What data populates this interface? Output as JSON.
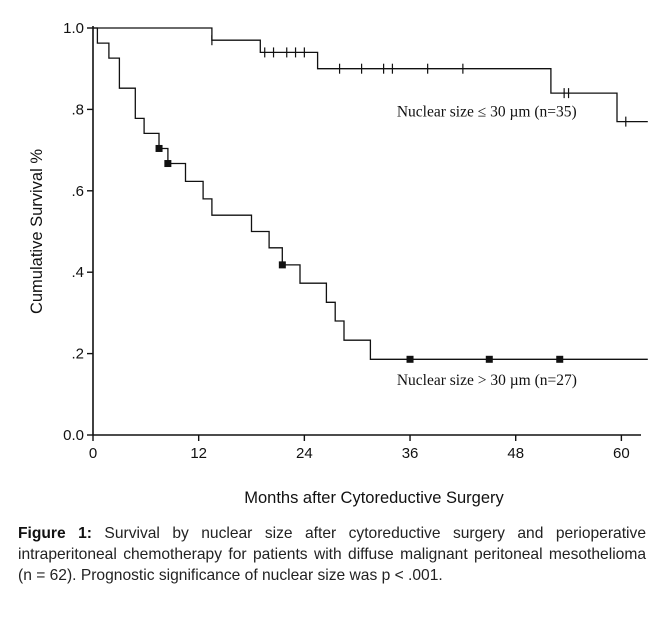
{
  "chart_data": {
    "type": "line",
    "title": "",
    "xlabel": "Months after Cytoreductive Surgery",
    "ylabel": "Cumulative Survival %",
    "xlim": [
      0,
      62
    ],
    "ylim": [
      0,
      1.0
    ],
    "x_ticks": [
      0,
      12,
      24,
      36,
      48,
      60
    ],
    "x_tick_labels": [
      "0",
      "12",
      "24",
      "36",
      "48",
      "60"
    ],
    "y_ticks": [
      0,
      0.2,
      0.4,
      0.6,
      0.8,
      1.0
    ],
    "y_tick_labels": [
      "0.0",
      ".2",
      ".4",
      ".6",
      ".8",
      "1.0"
    ],
    "grid": false,
    "series": [
      {
        "name": "Nuclear size ≤ 30 µm (n=35)",
        "step": [
          [
            0,
            1.0
          ],
          [
            13.5,
            1.0
          ],
          [
            13.5,
            0.97
          ],
          [
            19,
            0.97
          ],
          [
            19,
            0.94
          ],
          [
            25.5,
            0.94
          ],
          [
            25.5,
            0.9
          ],
          [
            52,
            0.9
          ],
          [
            52,
            0.84
          ],
          [
            56.5,
            0.84
          ],
          [
            56.5,
            0.84
          ],
          [
            59.5,
            0.84
          ],
          [
            59.5,
            0.77
          ],
          [
            63,
            0.77
          ]
        ],
        "censored": [
          13.5,
          19.5,
          20.5,
          22,
          23,
          24,
          28,
          30.5,
          33,
          34,
          38,
          42,
          53.5,
          54,
          60.5
        ],
        "censor_style": "tick"
      },
      {
        "name": "Nuclear size > 30 µm (n=27)",
        "step": [
          [
            0,
            1.0
          ],
          [
            0.5,
            1.0
          ],
          [
            0.5,
            0.963
          ],
          [
            1.8,
            0.963
          ],
          [
            1.8,
            0.926
          ],
          [
            3,
            0.926
          ],
          [
            3,
            0.852
          ],
          [
            4.8,
            0.852
          ],
          [
            4.8,
            0.778
          ],
          [
            5.8,
            0.778
          ],
          [
            5.8,
            0.741
          ],
          [
            7.5,
            0.741
          ],
          [
            7.5,
            0.704
          ],
          [
            8.5,
            0.704
          ],
          [
            8.5,
            0.667
          ],
          [
            10.5,
            0.667
          ],
          [
            10.5,
            0.623
          ],
          [
            12.5,
            0.623
          ],
          [
            12.5,
            0.58
          ],
          [
            13.5,
            0.58
          ],
          [
            13.5,
            0.54
          ],
          [
            18,
            0.54
          ],
          [
            18,
            0.5
          ],
          [
            20,
            0.5
          ],
          [
            20,
            0.46
          ],
          [
            21.5,
            0.46
          ],
          [
            21.5,
            0.418
          ],
          [
            23.5,
            0.418
          ],
          [
            23.5,
            0.373
          ],
          [
            26.5,
            0.373
          ],
          [
            26.5,
            0.326
          ],
          [
            27.5,
            0.326
          ],
          [
            27.5,
            0.28
          ],
          [
            28.5,
            0.28
          ],
          [
            28.5,
            0.233
          ],
          [
            31.5,
            0.233
          ],
          [
            31.5,
            0.186
          ],
          [
            63,
            0.186
          ]
        ],
        "censored": [
          [
            7.5,
            0.704
          ],
          [
            8.5,
            0.667
          ],
          [
            21.5,
            0.418
          ],
          [
            36,
            0.186
          ],
          [
            45,
            0.186
          ],
          [
            53,
            0.186
          ]
        ],
        "censor_style": "square"
      }
    ],
    "annotations": [
      {
        "text": "Nuclear size ≤ 30 µm (n=35)",
        "x": 34.5,
        "y": 0.795
      },
      {
        "text": "Nuclear size > 30 µm (n=27)",
        "x": 34.5,
        "y": 0.135
      }
    ]
  },
  "caption": {
    "label": "Figure 1:",
    "text": "Survival by nuclear size after cytoreductive surgery and perioperative intraperitoneal chemotherapy for patients with diffuse malignant peritoneal mesothelioma (n = 62). Prognostic significance of nuclear size was p < .001."
  }
}
